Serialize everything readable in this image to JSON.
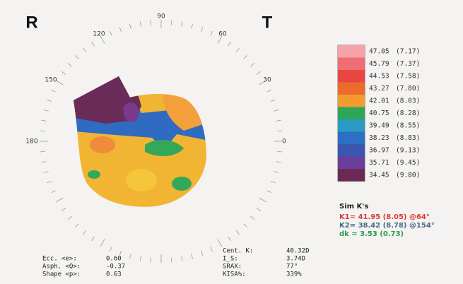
{
  "labels": {
    "left": "R",
    "right": "T"
  },
  "angles": [
    "90",
    "120",
    "60",
    "150",
    "30",
    "180",
    "0"
  ],
  "scale": [
    {
      "value": "47.05",
      "radius": "(7.17)",
      "color": "#f5a3a8"
    },
    {
      "value": "45.79",
      "radius": "(7.37)",
      "color": "#ef6e74"
    },
    {
      "value": "44.53",
      "radius": "(7.58)",
      "color": "#e8463f"
    },
    {
      "value": "43.27",
      "radius": "(7.80)",
      "color": "#ec6a2c"
    },
    {
      "value": "42.01",
      "radius": "(8.03)",
      "color": "#f39b2e"
    },
    {
      "value": "40.75",
      "radius": "(8.28)",
      "color": "#2fa55a"
    },
    {
      "value": "39.49",
      "radius": "(8.55)",
      "color": "#2a9cc4"
    },
    {
      "value": "38.23",
      "radius": "(8.83)",
      "color": "#2d6fc4"
    },
    {
      "value": "36.97",
      "radius": "(9.13)",
      "color": "#3a56b0"
    },
    {
      "value": "35.71",
      "radius": "(9.45)",
      "color": "#6a3f9c"
    },
    {
      "value": "34.45",
      "radius": "(9.80)",
      "color": "#6b2a55"
    }
  ],
  "sim_k": {
    "title": "Sim K's",
    "k1": "K1= 41.95 (8.05) @64°",
    "k2": "K2= 38.42 (8.78) @154°",
    "dk": "dk = 3.53 (0.73)"
  },
  "indices_left": [
    {
      "label": "Ecc. <e>:",
      "value": "0.60"
    },
    {
      "label": "Asph. <Q>:",
      "value": "-0.37"
    },
    {
      "label": "Shape <p>:",
      "value": "0.63"
    }
  ],
  "indices_right": [
    {
      "label": "Cent. K:",
      "value": "40.32D"
    },
    {
      "label": "I_S:",
      "value": "3.74D"
    },
    {
      "label": "SRAX:",
      "value": "77°"
    },
    {
      "label": "KISA%:",
      "value": "339%"
    }
  ]
}
